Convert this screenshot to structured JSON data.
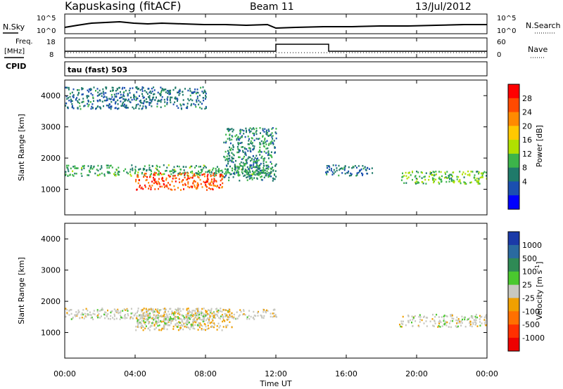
{
  "header": {
    "station": "Kapuskasing (fitACF)",
    "beam": "Beam 11",
    "date": "13/Jul/2012"
  },
  "noise_panel": {
    "left_label": "N.Sky",
    "left_ticks": [
      "10^5",
      "10^0"
    ],
    "right_label": "N.Search",
    "right_ticks": [
      "10^5",
      "10^0"
    ]
  },
  "freq_panel": {
    "left_label_1": "Freq.",
    "left_label_2": "[MHz]",
    "left_ticks": [
      "18",
      "8"
    ],
    "right_label": "Nave",
    "right_ticks": [
      "60",
      "0"
    ],
    "cpid_label": "CPID",
    "mode_text": "tau (fast) 503"
  },
  "axis": {
    "x_ticks": [
      "00:00",
      "04:00",
      "08:00",
      "12:00",
      "16:00",
      "20:00",
      "00:00"
    ],
    "x_label": "Time UT",
    "y_label": "Slant Range [km]",
    "y_ticks": [
      "4000",
      "3000",
      "2000",
      "1000"
    ]
  },
  "power_scale": {
    "label": "Power [dB]",
    "ticks": [
      "28",
      "24",
      "20",
      "16",
      "12",
      "8",
      "4"
    ],
    "colors": [
      "#ff0000",
      "#ff4a00",
      "#ff8a00",
      "#ffc800",
      "#b0e000",
      "#3cb44a",
      "#1f7a6a",
      "#1b4fb0",
      "#0000ff"
    ]
  },
  "velocity_scale": {
    "label": "Velocity [m s-1]",
    "label_main": "Velocity",
    "label_unit": "[m s",
    "label_exp": "-1",
    "label_close": "]",
    "ticks": [
      "1000",
      "500",
      "100",
      "25",
      "-25",
      "-100",
      "-500",
      "-1000"
    ],
    "colors": [
      "#1b3aa8",
      "#2a6aa0",
      "#2f8a55",
      "#4ac82e",
      "#c8c8c0",
      "#f0a000",
      "#ff7000",
      "#ff3000",
      "#ee0000"
    ]
  },
  "chart_data": {
    "type": "heatmap",
    "title": "Kapuskasing (fitACF)",
    "xlabel": "Time UT",
    "ylabel": "Slant Range [km]",
    "xlim_hours": [
      0,
      24
    ],
    "ylim_km": [
      180,
      4500
    ],
    "panels": [
      {
        "name": "Power [dB]",
        "colorbar_range": [
          0,
          30
        ],
        "regions": [
          {
            "hours": [
              0,
              12
            ],
            "range_km": [
              1450,
              1800
            ],
            "value": 10
          },
          {
            "hours": [
              4,
              9
            ],
            "range_km": [
              1000,
              1550
            ],
            "value": 26
          },
          {
            "hours": [
              9,
              12
            ],
            "range_km": [
              1300,
              3000
            ],
            "value": 8
          },
          {
            "hours": [
              14.8,
              17.5
            ],
            "range_km": [
              1450,
              1800
            ],
            "value": 6
          },
          {
            "hours": [
              19,
              24
            ],
            "range_km": [
              1200,
              1600
            ],
            "value": 12
          },
          {
            "hours": [
              0,
              8
            ],
            "range_km": [
              3600,
              4300
            ],
            "value": 6
          }
        ]
      },
      {
        "name": "Velocity [m s-1]",
        "colorbar_range": [
          -1000,
          1000
        ],
        "regions": [
          {
            "hours": [
              0,
              12
            ],
            "range_km": [
              1450,
              1800
            ],
            "value": 0
          },
          {
            "hours": [
              4,
              9.5
            ],
            "range_km": [
              1100,
              1800
            ],
            "value": -100
          },
          {
            "hours": [
              4,
              8
            ],
            "range_km": [
              1200,
              1600
            ],
            "value": 100
          },
          {
            "hours": [
              19,
              24
            ],
            "range_km": [
              1200,
              1600
            ],
            "value": 0
          }
        ]
      }
    ],
    "noise": {
      "left_range": "10^0 - 10^5",
      "right_range": "10^0 - 10^5"
    },
    "frequency_mhz": {
      "default": 10,
      "hours_12_to_15": 16
    },
    "nave": {
      "typical": 20
    },
    "grid": false
  }
}
